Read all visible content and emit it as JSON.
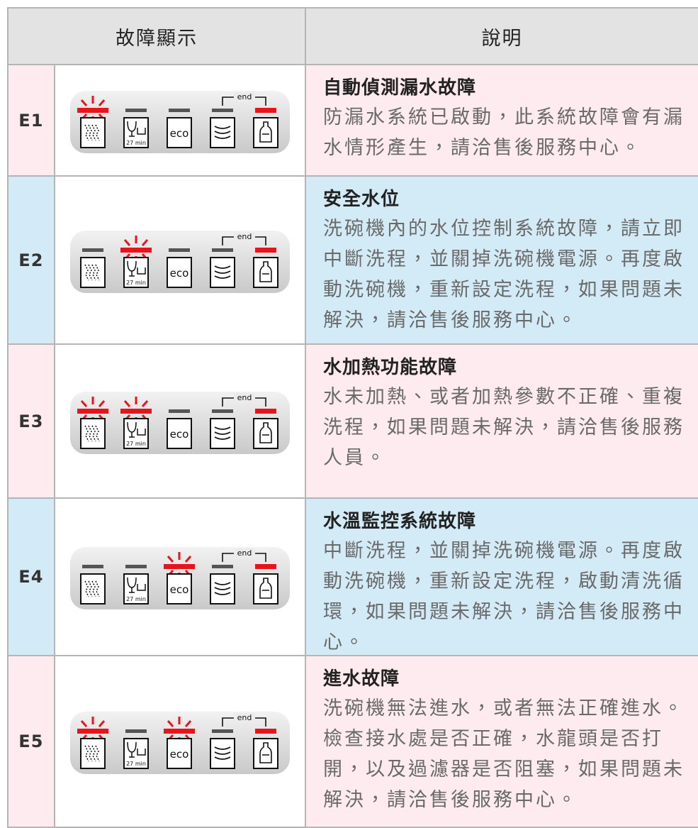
{
  "header": {
    "columns": [
      "故障顯示",
      "說明"
    ]
  },
  "panel": {
    "end_label": "end",
    "eco_label": "eco",
    "timer_label": "27 min"
  },
  "table": {
    "rows": [
      {
        "code": "E1",
        "title": "自動偵測漏水故障",
        "description": "防漏水系統已啟動，此系統故障會有漏水情形產生，請洽售後服務中心。"
      },
      {
        "code": "E2",
        "title": "安全水位",
        "description": "洗碗機內的水位控制系統故障，請立即中斷洗程，並關掉洗碗機電源。再度啟動洗碗機，重新設定洗程，如果問題未解決，請洽售後服務中心。"
      },
      {
        "code": "E3",
        "title": "水加熱功能故障",
        "description": "水未加熱、或者加熱參數不正確、重複洗程，如果問題未解決，請洽售後服務人員。"
      },
      {
        "code": "E4",
        "title": "水溫監控系統故障",
        "description": "中斷洗程，並關掉洗碗機電源。再度啟動洗碗機，重新設定洗程，啟動清洗循環，如果問題未解決，請洽售後服務中心。"
      },
      {
        "code": "E5",
        "title": "進水故障",
        "description": "洗碗機無法進水，或者無法正確進水。檢查接水處是否正確，水龍頭是否打開，以及過濾器是否阻塞，如果問題未解決，請洽售後服務中心。"
      }
    ]
  }
}
